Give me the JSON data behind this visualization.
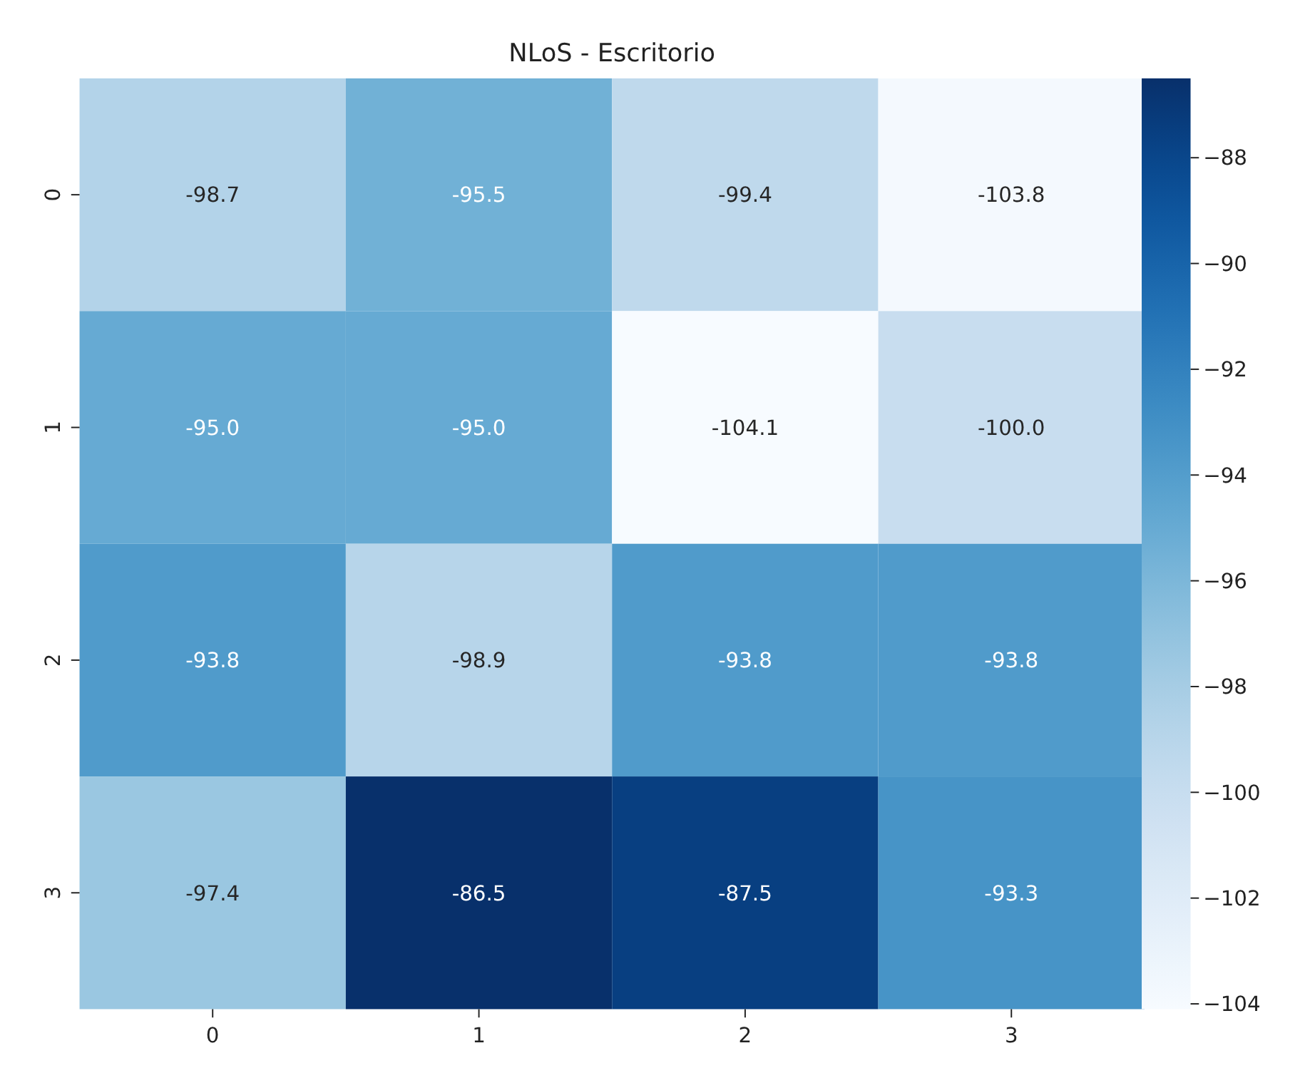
{
  "chart_data": {
    "type": "heatmap",
    "title": "NLoS - Escritorio",
    "categories": [
      "0",
      "1",
      "2",
      "3"
    ],
    "y_categories": [
      "0",
      "1",
      "2",
      "3"
    ],
    "cells": [
      [
        -98.7,
        -95.5,
        -99.4,
        -103.8
      ],
      [
        -95.0,
        -95.0,
        -104.1,
        -100.0
      ],
      [
        -93.8,
        -98.9,
        -93.8,
        -93.8
      ],
      [
        -97.4,
        -86.5,
        -87.5,
        -93.3
      ]
    ],
    "cell_labels": [
      [
        "-98.7",
        "-95.5",
        "-99.4",
        "-103.8"
      ],
      [
        "-95.0",
        "-95.0",
        "-104.1",
        "-100.0"
      ],
      [
        "-93.8",
        "-98.9",
        "-93.8",
        "-93.8"
      ],
      [
        "-97.4",
        "-86.5",
        "-87.5",
        "-93.3"
      ]
    ],
    "clim": [
      -104.1,
      -86.5
    ],
    "cticks": [
      -104,
      -102,
      -100,
      -98,
      -96,
      -94,
      -92,
      -90,
      -88
    ]
  }
}
